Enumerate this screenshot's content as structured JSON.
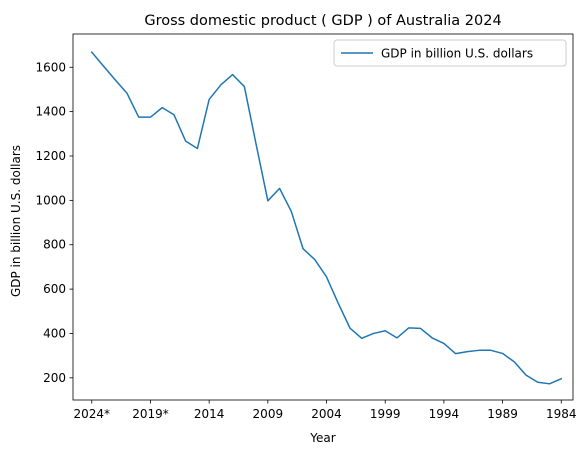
{
  "chart_data": {
    "type": "line",
    "title": "Gross domestic product ( GDP ) of Australia 2024",
    "xlabel": "Year",
    "ylabel": "GDP in billion U.S. dollars",
    "x_reversed": true,
    "x_tick_labels": [
      "2024*",
      "2019*",
      "2014",
      "2009",
      "2004",
      "1999",
      "1994",
      "1989",
      "1984"
    ],
    "y_ticks": [
      200,
      400,
      600,
      800,
      1000,
      1200,
      1400,
      1600
    ],
    "xlim": [
      2025.6,
      1983.0
    ],
    "ylim": [
      100,
      1750
    ],
    "grid": false,
    "legend_position": "top-right",
    "series": [
      {
        "name": "GDP in billion U.S. dollars",
        "color": "#1f77b4",
        "x": [
          2024,
          2023,
          2022,
          2021,
          2020,
          2019,
          2018,
          2017,
          2016,
          2015,
          2014,
          2013,
          2012,
          2011,
          2010,
          2009,
          2008,
          2007,
          2006,
          2005,
          2004,
          2003,
          2002,
          2001,
          2000,
          1999,
          1998,
          1997,
          1996,
          1995,
          1994,
          1993,
          1992,
          1991,
          1990,
          1989,
          1988,
          1987,
          1986,
          1985,
          1984
        ],
        "values": [
          1668,
          1605,
          1543,
          1483,
          1375,
          1375,
          1418,
          1386,
          1267,
          1234,
          1455,
          1521,
          1567,
          1513,
          1253,
          998,
          1054,
          950,
          782,
          733,
          655,
          536,
          424,
          378,
          400,
          412,
          380,
          425,
          423,
          380,
          355,
          309,
          318,
          324,
          324,
          310,
          272,
          212,
          180,
          173,
          196
        ]
      }
    ]
  }
}
